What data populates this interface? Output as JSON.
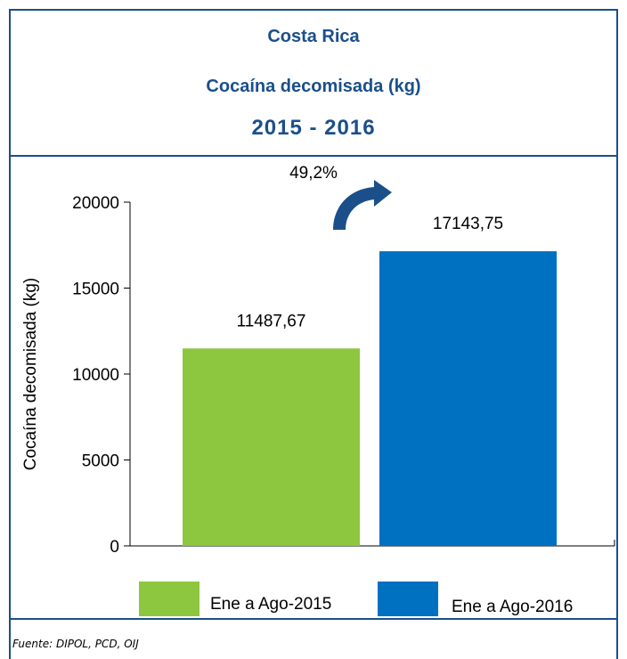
{
  "header": {
    "title_line1": "Costa Rica",
    "title_line2": "Cocaína decomisada (kg)",
    "title_line3": "2015 - 2016"
  },
  "chart_data": {
    "type": "bar",
    "title": "Costa Rica Cocaína decomisada (kg) 2015 - 2016",
    "ylabel": "Cocaína decomisada (kg)",
    "xlabel": "",
    "ylim": [
      0,
      20000
    ],
    "yticks": [
      0,
      5000,
      10000,
      15000,
      20000
    ],
    "categories": [
      "Ene a Ago-2015",
      "Ene a Ago-2016"
    ],
    "values": [
      11487.67,
      17143.75
    ],
    "value_labels": [
      "11487,67",
      "17143,75"
    ],
    "colors": [
      "#8dc63f",
      "#0070c0"
    ],
    "legend": {
      "position": "bottom",
      "entries": [
        "Ene a Ago-2015",
        "Ene a Ago-2016"
      ]
    },
    "annotation": {
      "text": "49,2%",
      "color": "#1b4f8a"
    },
    "grid": false
  },
  "footer": {
    "source": "Fuente: DIPOL, PCD, OIJ"
  }
}
